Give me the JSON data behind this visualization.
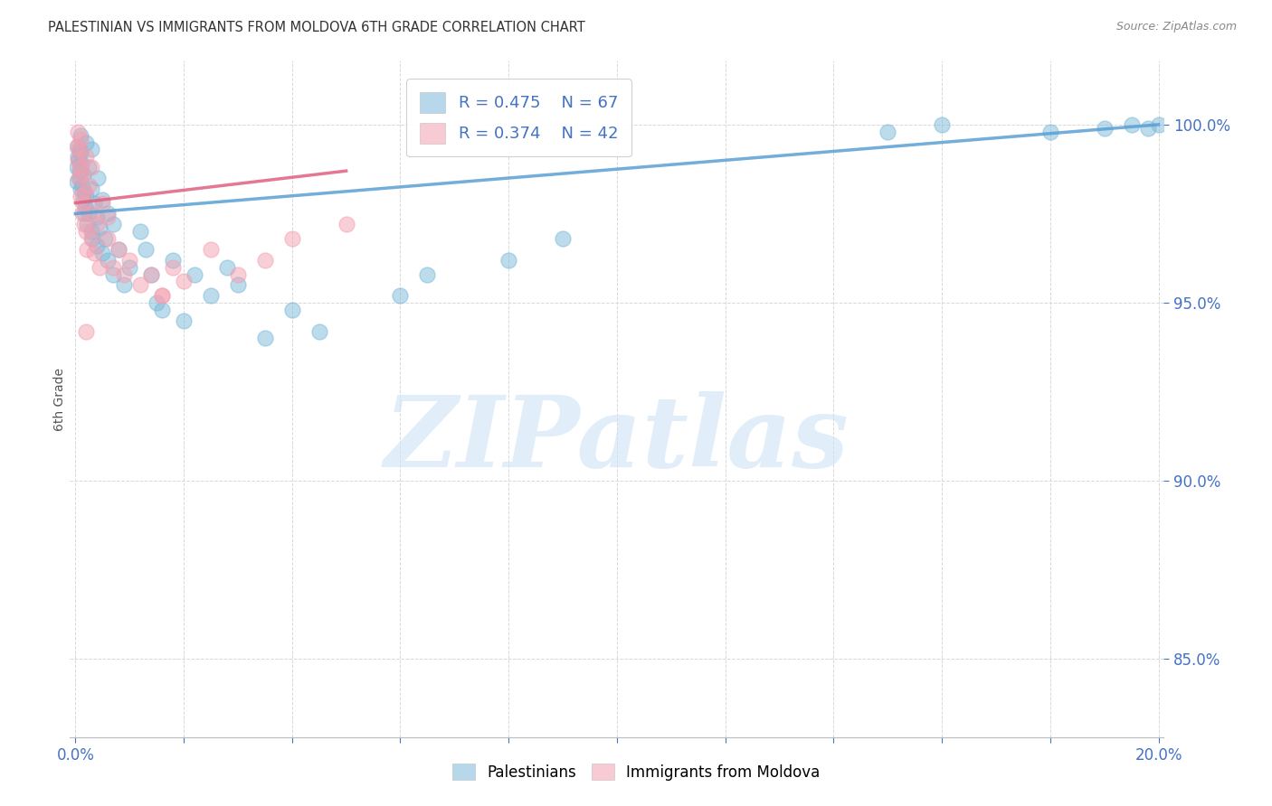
{
  "title": "PALESTINIAN VS IMMIGRANTS FROM MOLDOVA 6TH GRADE CORRELATION CHART",
  "source": "Source: ZipAtlas.com",
  "ylabel": "6th Grade",
  "xlim": [
    -0.001,
    0.201
  ],
  "ylim": [
    0.828,
    1.018
  ],
  "xtick_positions": [
    0.0,
    0.02,
    0.04,
    0.06,
    0.08,
    0.1,
    0.12,
    0.14,
    0.16,
    0.18,
    0.2
  ],
  "xtick_labels": [
    "0.0%",
    "",
    "",
    "",
    "",
    "",
    "",
    "",
    "",
    "",
    "20.0%"
  ],
  "ytick_positions": [
    0.85,
    0.9,
    0.95,
    1.0
  ],
  "ytick_labels": [
    "85.0%",
    "90.0%",
    "95.0%",
    "100.0%"
  ],
  "legend_r1": "R = 0.475",
  "legend_n1": "N = 67",
  "legend_r2": "R = 0.374",
  "legend_n2": "N = 42",
  "blue_color": "#7ab8d9",
  "pink_color": "#f4a0b0",
  "blue_line_color": "#5a9fd4",
  "pink_line_color": "#e06080",
  "watermark_text": "ZIPatlas",
  "background_color": "#ffffff",
  "grid_color": "#d8d8d8",
  "title_color": "#333333",
  "axis_value_color": "#4472c4",
  "palestinians_x": [
    0.0002,
    0.0003,
    0.0004,
    0.0005,
    0.0006,
    0.0007,
    0.0008,
    0.0008,
    0.0009,
    0.001,
    0.001,
    0.0012,
    0.0013,
    0.0014,
    0.0015,
    0.0016,
    0.0017,
    0.0018,
    0.002,
    0.002,
    0.0022,
    0.0025,
    0.0025,
    0.003,
    0.003,
    0.003,
    0.0032,
    0.0035,
    0.004,
    0.004,
    0.0042,
    0.0045,
    0.005,
    0.005,
    0.0055,
    0.006,
    0.006,
    0.007,
    0.007,
    0.008,
    0.009,
    0.01,
    0.012,
    0.013,
    0.014,
    0.015,
    0.016,
    0.018,
    0.02,
    0.022,
    0.025,
    0.028,
    0.03,
    0.035,
    0.04,
    0.045,
    0.06,
    0.065,
    0.08,
    0.09,
    0.15,
    0.16,
    0.18,
    0.19,
    0.195,
    0.198,
    0.2
  ],
  "palestinians_y": [
    0.984,
    0.988,
    0.991,
    0.994,
    0.99,
    0.985,
    0.993,
    0.987,
    0.982,
    0.997,
    0.992,
    0.989,
    0.983,
    0.986,
    0.979,
    0.975,
    0.981,
    0.977,
    0.995,
    0.98,
    0.972,
    0.988,
    0.975,
    0.993,
    0.97,
    0.982,
    0.968,
    0.978,
    0.974,
    0.966,
    0.985,
    0.971,
    0.964,
    0.979,
    0.968,
    0.962,
    0.975,
    0.958,
    0.972,
    0.965,
    0.955,
    0.96,
    0.97,
    0.965,
    0.958,
    0.95,
    0.948,
    0.962,
    0.945,
    0.958,
    0.952,
    0.96,
    0.955,
    0.94,
    0.948,
    0.942,
    0.952,
    0.958,
    0.962,
    0.968,
    0.998,
    1.0,
    0.998,
    0.999,
    1.0,
    0.999,
    1.0
  ],
  "moldova_x": [
    0.0002,
    0.0004,
    0.0005,
    0.0006,
    0.0007,
    0.0008,
    0.001,
    0.001,
    0.0012,
    0.0013,
    0.0015,
    0.0016,
    0.0018,
    0.002,
    0.002,
    0.0022,
    0.0025,
    0.003,
    0.003,
    0.0032,
    0.0035,
    0.004,
    0.0045,
    0.005,
    0.006,
    0.006,
    0.007,
    0.008,
    0.009,
    0.01,
    0.012,
    0.014,
    0.016,
    0.018,
    0.02,
    0.025,
    0.03,
    0.035,
    0.04,
    0.05,
    0.002,
    0.016
  ],
  "moldova_y": [
    0.994,
    0.998,
    0.99,
    0.985,
    0.993,
    0.988,
    0.996,
    0.98,
    0.986,
    0.975,
    0.978,
    0.972,
    0.981,
    0.991,
    0.97,
    0.965,
    0.983,
    0.988,
    0.968,
    0.975,
    0.964,
    0.972,
    0.96,
    0.978,
    0.968,
    0.974,
    0.96,
    0.965,
    0.958,
    0.962,
    0.955,
    0.958,
    0.952,
    0.96,
    0.956,
    0.965,
    0.958,
    0.962,
    0.968,
    0.972,
    0.942,
    0.952
  ]
}
